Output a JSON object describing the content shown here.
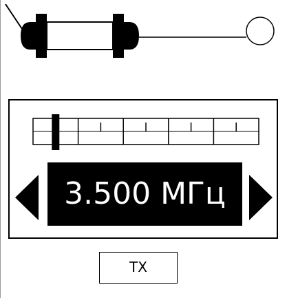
{
  "frequency": {
    "display": "3.500 МГц",
    "slider_fraction": 0.1
  },
  "controls": {
    "tx_label": "TX",
    "decrease_icon": "triangle-left-icon",
    "increase_icon": "triangle-right-icon"
  },
  "colors": {
    "ink": "#000000",
    "paper": "#ffffff"
  }
}
